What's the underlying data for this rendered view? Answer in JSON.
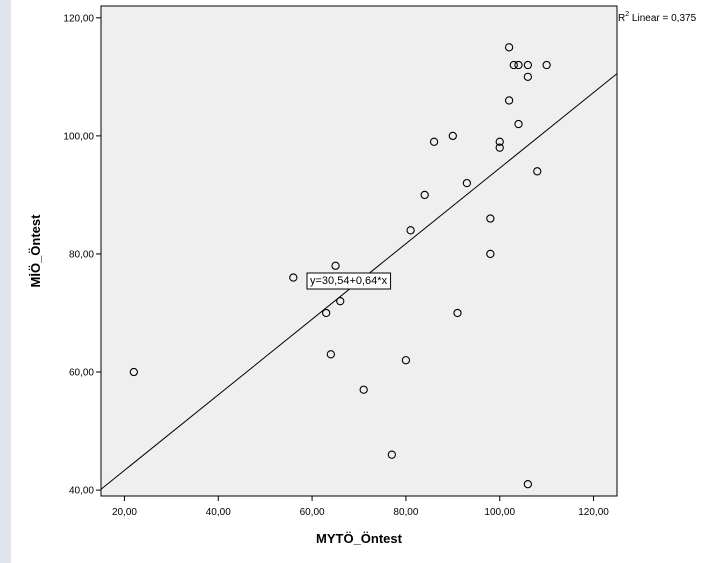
{
  "chart_data": {
    "type": "scatter",
    "title": "",
    "xlabel": "MYTÖ_Öntest",
    "ylabel": "MİÖ_Öntest",
    "xlim": [
      15,
      125
    ],
    "ylim": [
      39,
      122
    ],
    "x_ticks": [
      20,
      40,
      60,
      80,
      100,
      120
    ],
    "y_ticks": [
      40,
      60,
      80,
      100,
      120
    ],
    "x_tick_labels": [
      "20,00",
      "40,00",
      "60,00",
      "80,00",
      "100,00",
      "120,00"
    ],
    "y_tick_labels": [
      "40,00",
      "60,00",
      "80,00",
      "100,00",
      "120,00"
    ],
    "grid": false,
    "points": [
      {
        "x": 22,
        "y": 60
      },
      {
        "x": 56,
        "y": 76
      },
      {
        "x": 63,
        "y": 70
      },
      {
        "x": 64,
        "y": 63
      },
      {
        "x": 65,
        "y": 78
      },
      {
        "x": 66,
        "y": 72
      },
      {
        "x": 71,
        "y": 57
      },
      {
        "x": 77,
        "y": 46
      },
      {
        "x": 80,
        "y": 62
      },
      {
        "x": 81,
        "y": 84
      },
      {
        "x": 84,
        "y": 90
      },
      {
        "x": 86,
        "y": 99
      },
      {
        "x": 90,
        "y": 100
      },
      {
        "x": 91,
        "y": 70
      },
      {
        "x": 93,
        "y": 92
      },
      {
        "x": 98,
        "y": 86
      },
      {
        "x": 98,
        "y": 80
      },
      {
        "x": 100,
        "y": 99
      },
      {
        "x": 100,
        "y": 98
      },
      {
        "x": 102,
        "y": 115
      },
      {
        "x": 102,
        "y": 106
      },
      {
        "x": 103,
        "y": 112
      },
      {
        "x": 104,
        "y": 112
      },
      {
        "x": 104,
        "y": 102
      },
      {
        "x": 106,
        "y": 112
      },
      {
        "x": 106,
        "y": 110
      },
      {
        "x": 106,
        "y": 41
      },
      {
        "x": 108,
        "y": 94
      },
      {
        "x": 110,
        "y": 112
      }
    ],
    "fit_line": {
      "intercept": 30.54,
      "slope": 0.64
    },
    "fit_label": "y=30,54+0,64*x",
    "r2_label": {
      "prefix": "R",
      "sup": "2",
      "text": " Linear = 0,375"
    },
    "colors": {
      "plot_bg": "#efefef",
      "marker_stroke": "#000000",
      "line": "#000000",
      "side_strip": "#dde4ee"
    }
  }
}
